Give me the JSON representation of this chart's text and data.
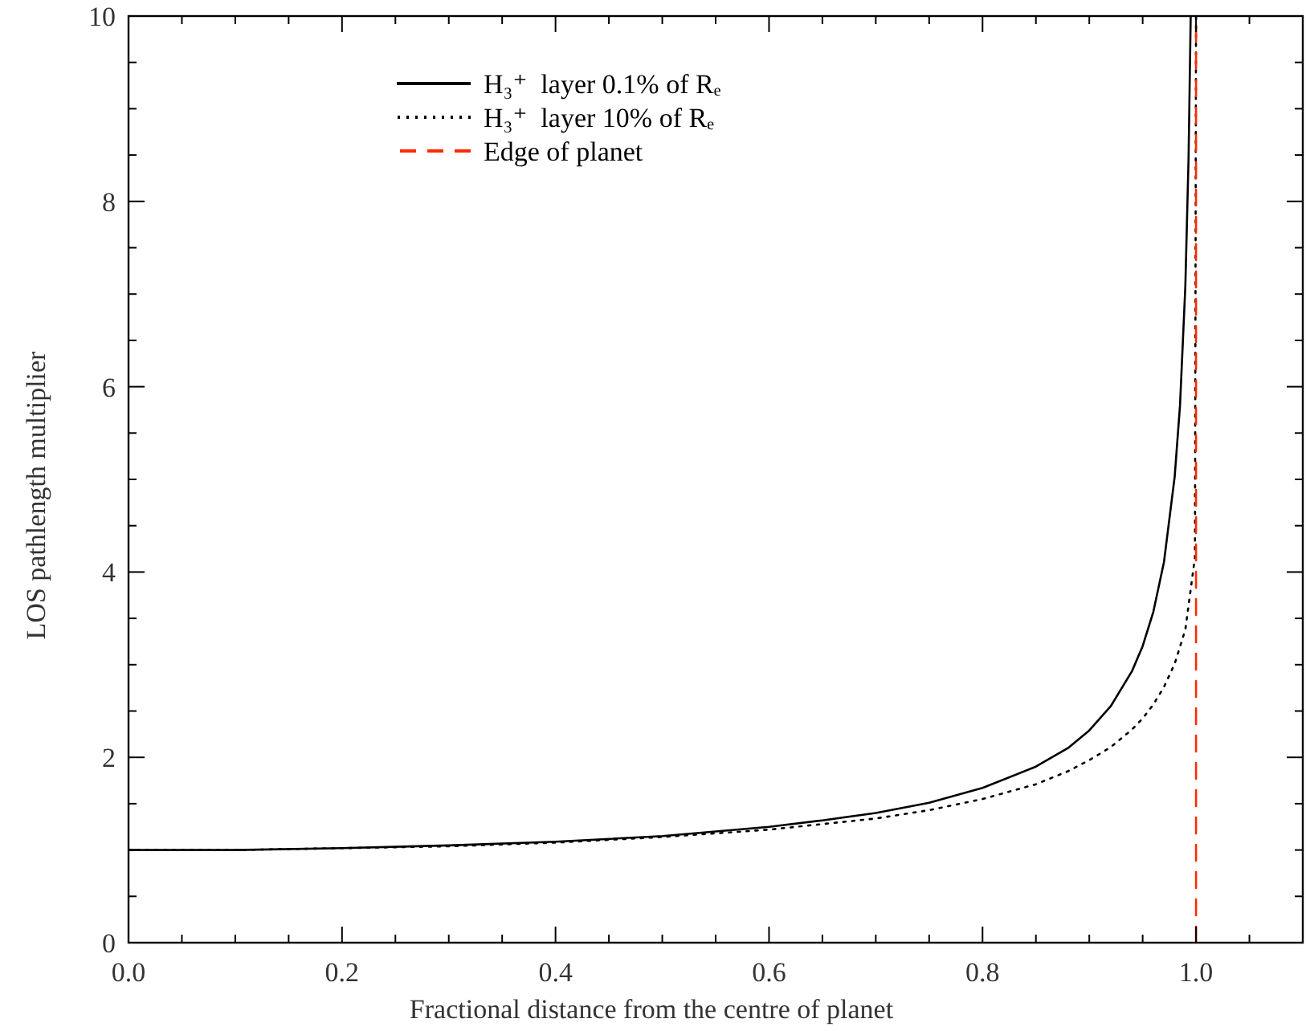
{
  "chart_data": {
    "type": "line",
    "xlabel": "Fractional distance from the centre of planet",
    "ylabel": "LOS pathlength multiplier",
    "xlim": [
      0,
      1.1
    ],
    "ylim": [
      0,
      10
    ],
    "xticks": [
      {
        "value": 0,
        "label": "0.0"
      },
      {
        "value": 0.05,
        "label": null
      },
      {
        "value": 0.1,
        "label": null
      },
      {
        "value": 0.15,
        "label": null
      },
      {
        "value": 0.2,
        "label": "0.2"
      },
      {
        "value": 0.25,
        "label": null
      },
      {
        "value": 0.3,
        "label": null
      },
      {
        "value": 0.35,
        "label": null
      },
      {
        "value": 0.4,
        "label": "0.4"
      },
      {
        "value": 0.45,
        "label": null
      },
      {
        "value": 0.5,
        "label": null
      },
      {
        "value": 0.55,
        "label": null
      },
      {
        "value": 0.6,
        "label": "0.6"
      },
      {
        "value": 0.65,
        "label": null
      },
      {
        "value": 0.7,
        "label": null
      },
      {
        "value": 0.75,
        "label": null
      },
      {
        "value": 0.8,
        "label": "0.8"
      },
      {
        "value": 0.85,
        "label": null
      },
      {
        "value": 0.9,
        "label": null
      },
      {
        "value": 0.95,
        "label": null
      },
      {
        "value": 1.0,
        "label": "1.0"
      },
      {
        "value": 1.05,
        "label": null
      }
    ],
    "yticks": [
      0,
      {
        "value": 0.5,
        "label": null
      },
      {
        "value": 1,
        "label": null
      },
      {
        "value": 1.5,
        "label": null
      },
      2,
      {
        "value": 2.5,
        "label": null
      },
      {
        "value": 3,
        "label": null
      },
      {
        "value": 3.5,
        "label": null
      },
      4,
      {
        "value": 4.5,
        "label": null
      },
      {
        "value": 5,
        "label": null
      },
      {
        "value": 5.5,
        "label": null
      },
      6,
      {
        "value": 6.5,
        "label": null
      },
      {
        "value": 7,
        "label": null
      },
      {
        "value": 7.5,
        "label": null
      },
      8,
      {
        "value": 8.5,
        "label": null
      },
      {
        "value": 9,
        "label": null
      },
      {
        "value": 9.5,
        "label": null
      },
      10
    ],
    "grid": false,
    "legend": "top left",
    "marker": "none",
    "series": [
      {
        "name": "H₃⁺  layer 0.1% of Rₑ",
        "color": "#000000",
        "line_style": "solid",
        "x": [
          0,
          0.1,
          0.2,
          0.3,
          0.4,
          0.5,
          0.6,
          0.65,
          0.7,
          0.75,
          0.8,
          0.85,
          0.88,
          0.9,
          0.92,
          0.94,
          0.95,
          0.96,
          0.97,
          0.98,
          0.985,
          0.99,
          0.993,
          0.995
        ],
        "values": [
          1.0,
          1.0,
          1.02,
          1.05,
          1.09,
          1.15,
          1.25,
          1.32,
          1.4,
          1.51,
          1.67,
          1.9,
          2.1,
          2.29,
          2.55,
          2.93,
          3.2,
          3.57,
          4.11,
          5.03,
          5.8,
          7.09,
          8.47,
          10
        ]
      },
      {
        "name": "H₃⁺  layer 10% of Rₑ",
        "color": "#000000",
        "line_style": "dotted",
        "x": [
          0,
          0.1,
          0.2,
          0.3,
          0.4,
          0.5,
          0.6,
          0.65,
          0.7,
          0.75,
          0.8,
          0.85,
          0.88,
          0.9,
          0.92,
          0.94,
          0.95,
          0.96,
          0.97,
          0.98,
          0.99,
          0.999,
          1.0
        ],
        "values": [
          1.0,
          1.0,
          1.02,
          1.04,
          1.08,
          1.14,
          1.22,
          1.28,
          1.34,
          1.43,
          1.55,
          1.71,
          1.85,
          1.97,
          2.11,
          2.3,
          2.42,
          2.57,
          2.76,
          3.01,
          3.38,
          4.16,
          10
        ]
      },
      {
        "name": "Edge of planet",
        "type": "line",
        "color": "#ff2a00",
        "line_style": "dashed",
        "x": [
          1.0,
          1.0
        ],
        "values": [
          0,
          10
        ]
      }
    ]
  }
}
